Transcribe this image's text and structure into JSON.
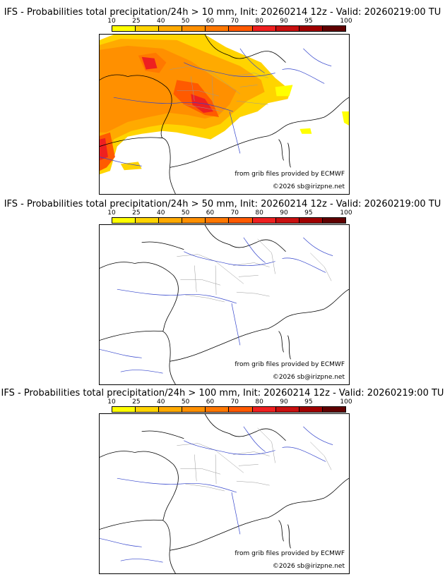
{
  "colorbar": {
    "ticks": [
      "10",
      "25",
      "40",
      "50",
      "60",
      "70",
      "80",
      "90",
      "95",
      "100"
    ],
    "colors": [
      "#ffff00",
      "#ffd400",
      "#ffaa00",
      "#ff9000",
      "#ff7800",
      "#ff5a00",
      "#ee2020",
      "#c81010",
      "#a00000",
      "#600000"
    ]
  },
  "panels": [
    {
      "title": "IFS - Probabilities total precipitation/24h > 10 mm, Init: 20260214 12z - Valid: 20260219:00 TU",
      "threshold_mm": 10
    },
    {
      "title": "IFS - Probabilities total precipitation/24h > 50 mm, Init: 20260214 12z - Valid: 20260219:00 TU",
      "threshold_mm": 50
    },
    {
      "title": "IFS - Probabilities total precipitation/24h > 100 mm, Init: 20260214 12z - Valid: 20260219:00 TU",
      "threshold_mm": 100
    }
  ],
  "credits": {
    "source": "from grib files provided by ECMWF",
    "copyright": "©2026 sb@irizpne.net"
  }
}
